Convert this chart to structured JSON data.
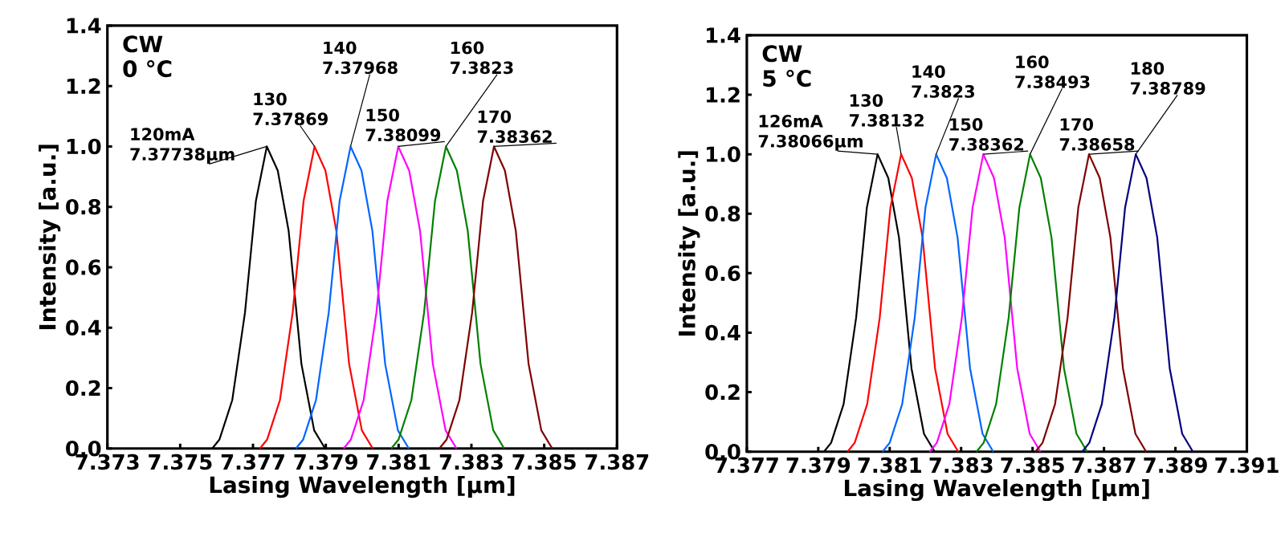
{
  "chart_data": [
    {
      "type": "line",
      "xlabel": "Lasing Wavelength [µm]",
      "ylabel": "Intensity [a.u.]",
      "xlim": [
        7.373,
        7.387
      ],
      "xticks": [
        7.373,
        7.375,
        7.377,
        7.379,
        7.381,
        7.383,
        7.385,
        7.387
      ],
      "ylim": [
        0,
        1.4
      ],
      "yticks": [
        {
          "value": 0,
          "label": "0.0"
        },
        {
          "value": 0.2,
          "label": "0.2"
        },
        {
          "value": 0.4,
          "label": "0.4"
        },
        {
          "value": 0.6,
          "label": "0.6"
        },
        {
          "value": 0.8,
          "label": "0.8"
        },
        {
          "value": 1,
          "label": "1.0"
        },
        {
          "value": 1.2,
          "label": "1.2"
        },
        {
          "value": 1.4,
          "label": "1.4"
        }
      ],
      "series": [
        {
          "color": "#000000",
          "x": [
            7.37588,
            7.37608,
            7.37643,
            7.37678,
            7.37708,
            7.37738,
            7.37768,
            7.37798,
            7.37833,
            7.37868,
            7.37898
          ],
          "values": [
            0,
            0.03,
            0.16,
            0.45,
            0.82,
            1,
            0.92,
            0.72,
            0.28,
            0.06,
            0
          ]
        },
        {
          "color": "#ff0000",
          "x": [
            7.37719,
            7.37739,
            7.37774,
            7.37809,
            7.37839,
            7.37869,
            7.37899,
            7.37929,
            7.37964,
            7.37999,
            7.38029
          ],
          "values": [
            0,
            0.03,
            0.16,
            0.45,
            0.82,
            1,
            0.92,
            0.72,
            0.28,
            0.06,
            0
          ]
        },
        {
          "color": "#0066ff",
          "x": [
            7.37818,
            7.37838,
            7.37873,
            7.37908,
            7.37938,
            7.37968,
            7.37998,
            7.38028,
            7.38063,
            7.38098,
            7.38128
          ],
          "values": [
            0,
            0.03,
            0.16,
            0.45,
            0.82,
            1,
            0.92,
            0.72,
            0.28,
            0.06,
            0
          ]
        },
        {
          "color": "#ff00ff",
          "x": [
            7.37949,
            7.37969,
            7.38004,
            7.38039,
            7.38069,
            7.38099,
            7.38129,
            7.38159,
            7.38194,
            7.38229,
            7.38259
          ],
          "values": [
            0,
            0.03,
            0.16,
            0.45,
            0.82,
            1,
            0.92,
            0.72,
            0.28,
            0.06,
            0
          ]
        },
        {
          "color": "#008000",
          "x": [
            7.3808,
            7.381,
            7.38135,
            7.3817,
            7.382,
            7.3823,
            7.3826,
            7.3829,
            7.38325,
            7.3836,
            7.3839
          ],
          "values": [
            0,
            0.03,
            0.16,
            0.45,
            0.82,
            1,
            0.92,
            0.72,
            0.28,
            0.06,
            0
          ]
        },
        {
          "color": "#800000",
          "x": [
            7.38212,
            7.38232,
            7.38267,
            7.38302,
            7.38332,
            7.38362,
            7.38392,
            7.38422,
            7.38457,
            7.38492,
            7.38522
          ],
          "values": [
            0,
            0.03,
            0.16,
            0.45,
            0.82,
            1,
            0.92,
            0.72,
            0.28,
            0.06,
            0
          ]
        }
      ],
      "annotations": [
        "CW 0 °C",
        {
          "text": "120mA 7.37738µm",
          "x": 7.37738,
          "y": 1
        },
        {
          "text": "130 7.37869",
          "x": 7.37869,
          "y": 1
        },
        {
          "text": "140 7.37968",
          "x": 7.37968,
          "y": 1
        },
        {
          "text": "150 7.38099",
          "x": 7.38099,
          "y": 1
        },
        {
          "text": "160 7.3823",
          "x": 7.3823,
          "y": 1
        },
        {
          "text": "170 7.38362",
          "x": 7.38362,
          "y": 1
        }
      ]
    },
    {
      "type": "line",
      "xlabel": "Lasing Wavelength [µm]",
      "ylabel": "Intensity [a.u.]",
      "xlim": [
        7.377,
        7.391
      ],
      "xticks": [
        7.377,
        7.379,
        7.381,
        7.383,
        7.385,
        7.387,
        7.389,
        7.391
      ],
      "ylim": [
        0,
        1.4
      ],
      "yticks": [
        {
          "value": 0,
          "label": "0.0"
        },
        {
          "value": 0.2,
          "label": "0.2"
        },
        {
          "value": 0.4,
          "label": "0.4"
        },
        {
          "value": 0.6,
          "label": "0.6"
        },
        {
          "value": 0.8,
          "label": "0.8"
        },
        {
          "value": 1,
          "label": "1.0"
        },
        {
          "value": 1.2,
          "label": "1.2"
        },
        {
          "value": 1.4,
          "label": "1.4"
        }
      ],
      "series": [
        {
          "color": "#000000",
          "x": [
            7.37916,
            7.37936,
            7.37971,
            7.38006,
            7.38036,
            7.38066,
            7.38096,
            7.38126,
            7.38161,
            7.38196,
            7.38226
          ],
          "values": [
            0,
            0.03,
            0.16,
            0.45,
            0.82,
            1,
            0.92,
            0.72,
            0.28,
            0.06,
            0
          ]
        },
        {
          "color": "#ff0000",
          "x": [
            7.37982,
            7.38002,
            7.38037,
            7.38072,
            7.38102,
            7.38132,
            7.38162,
            7.38192,
            7.38227,
            7.38262,
            7.38292
          ],
          "values": [
            0,
            0.03,
            0.16,
            0.45,
            0.82,
            1,
            0.92,
            0.72,
            0.28,
            0.06,
            0
          ]
        },
        {
          "color": "#0066ff",
          "x": [
            7.3808,
            7.381,
            7.38135,
            7.3817,
            7.382,
            7.3823,
            7.3826,
            7.3829,
            7.38325,
            7.3836,
            7.3839
          ],
          "values": [
            0,
            0.03,
            0.16,
            0.45,
            0.82,
            1,
            0.92,
            0.72,
            0.28,
            0.06,
            0
          ]
        },
        {
          "color": "#ff00ff",
          "x": [
            7.38212,
            7.38232,
            7.38267,
            7.38302,
            7.38332,
            7.38362,
            7.38392,
            7.38422,
            7.38457,
            7.38492,
            7.38522
          ],
          "values": [
            0,
            0.03,
            0.16,
            0.45,
            0.82,
            1,
            0.92,
            0.72,
            0.28,
            0.06,
            0
          ]
        },
        {
          "color": "#008000",
          "x": [
            7.38343,
            7.38363,
            7.38398,
            7.38433,
            7.38463,
            7.38493,
            7.38523,
            7.38553,
            7.38588,
            7.38623,
            7.38653
          ],
          "values": [
            0,
            0.03,
            0.16,
            0.45,
            0.82,
            1,
            0.92,
            0.72,
            0.28,
            0.06,
            0
          ]
        },
        {
          "color": "#800000",
          "x": [
            7.38508,
            7.38528,
            7.38563,
            7.38598,
            7.38628,
            7.38658,
            7.38688,
            7.38718,
            7.38753,
            7.38788,
            7.38818
          ],
          "values": [
            0,
            0.03,
            0.16,
            0.45,
            0.82,
            1,
            0.92,
            0.72,
            0.28,
            0.06,
            0
          ]
        },
        {
          "color": "#000080",
          "x": [
            7.38639,
            7.38659,
            7.38694,
            7.38729,
            7.38759,
            7.38789,
            7.38819,
            7.38849,
            7.38884,
            7.38919,
            7.38949
          ],
          "values": [
            0,
            0.03,
            0.16,
            0.45,
            0.82,
            1,
            0.92,
            0.72,
            0.28,
            0.06,
            0
          ]
        }
      ],
      "annotations": [
        "CW 5 °C",
        {
          "text": "126mA 7.38066µm",
          "x": 7.38066,
          "y": 1
        },
        {
          "text": "130 7.38132",
          "x": 7.38132,
          "y": 1
        },
        {
          "text": "140 7.3823",
          "x": 7.3823,
          "y": 1
        },
        {
          "text": "150 7.38362",
          "x": 7.38362,
          "y": 1
        },
        {
          "text": "160 7.38493",
          "x": 7.38493,
          "y": 1
        },
        {
          "text": "170 7.38658",
          "x": 7.38658,
          "y": 1
        },
        {
          "text": "180 7.38789",
          "x": 7.38789,
          "y": 1
        }
      ]
    }
  ]
}
